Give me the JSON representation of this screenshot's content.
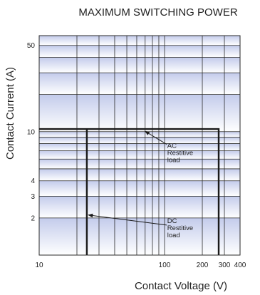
{
  "chart_data": {
    "type": "line",
    "title": "MAXIMUM SWITCHING POWER",
    "xlabel": "Contact Voltage (V)",
    "ylabel": "Contact Current (A)",
    "x_scale": "log",
    "y_scale": "log",
    "xlim": [
      10,
      400
    ],
    "ylim": [
      1,
      60
    ],
    "x_ticks": [
      {
        "value": 10,
        "label": "10"
      },
      {
        "value": 100,
        "label": "100"
      },
      {
        "value": 200,
        "label": "200"
      },
      {
        "value": 300,
        "label": "300"
      },
      {
        "value": 400,
        "label": "400"
      }
    ],
    "y_ticks": [
      {
        "value": 2,
        "label": "2"
      },
      {
        "value": 3,
        "label": "3"
      },
      {
        "value": 4,
        "label": "4"
      },
      {
        "value": 10,
        "label": "10"
      },
      {
        "value": 50,
        "label": "50"
      }
    ],
    "grid": true,
    "series": [
      {
        "name": "AC Restitive load",
        "x": [
          10,
          270,
          270
        ],
        "y": [
          10.5,
          10.5,
          1
        ]
      },
      {
        "name": "DC Restitive load",
        "x": [
          24,
          24
        ],
        "y": [
          10.5,
          1
        ]
      }
    ],
    "annotations": [
      {
        "lines": [
          "AC",
          "Restitive",
          "load"
        ],
        "target": [
          68,
          10.5
        ]
      },
      {
        "lines": [
          "DC",
          "Restitive",
          "load"
        ],
        "target": [
          24,
          2.2
        ]
      }
    ],
    "colors": {
      "line": "#1a1a1a",
      "grid": "#2a2a2a",
      "band_dark": "#c3cbeb",
      "band_light": "#ffffff"
    }
  }
}
